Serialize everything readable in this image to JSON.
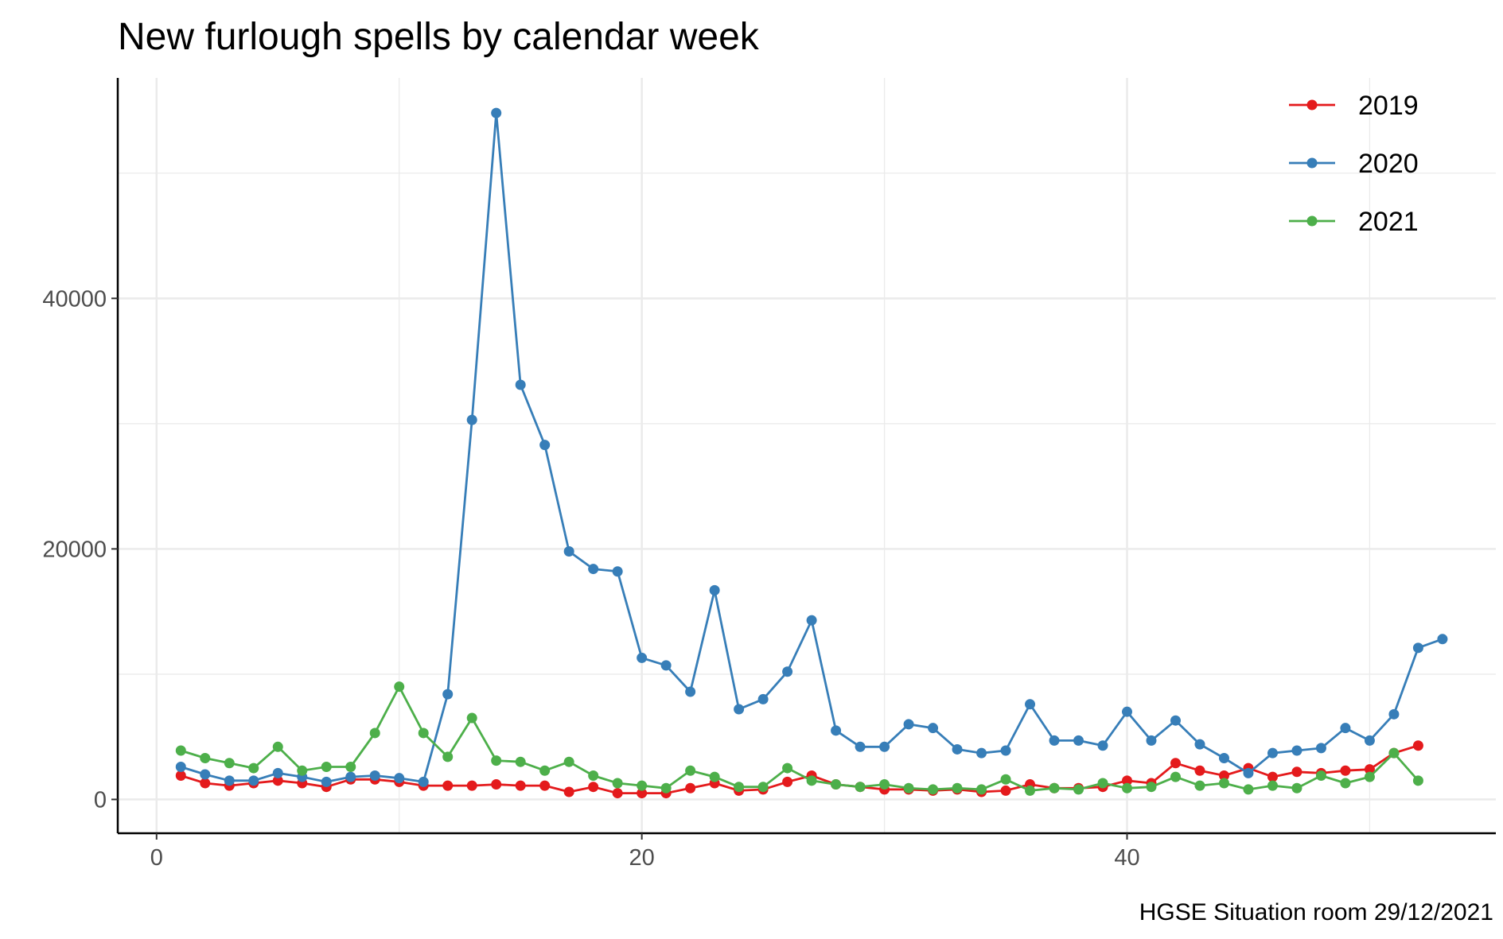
{
  "chart_data": {
    "type": "line",
    "title": "New furlough spells by calendar week",
    "caption": "HGSE Situation room 29/12/2021",
    "xlabel": "",
    "ylabel": "",
    "xlim": [
      -1.6,
      55.2
    ],
    "ylim": [
      -2700,
      57600
    ],
    "x_ticks": [
      0,
      20,
      40
    ],
    "x_tick_labels": [
      "0",
      "20",
      "40"
    ],
    "y_ticks": [
      0,
      20000,
      40000
    ],
    "y_tick_labels": [
      "0",
      "20000",
      "40000"
    ],
    "grid": true,
    "legend_position": "top-right",
    "series": [
      {
        "name": "2019",
        "color": "#e41a1c",
        "x": [
          1,
          2,
          3,
          4,
          5,
          6,
          7,
          8,
          9,
          10,
          11,
          12,
          13,
          14,
          15,
          16,
          17,
          18,
          19,
          20,
          21,
          22,
          23,
          24,
          25,
          26,
          27,
          28,
          29,
          30,
          31,
          32,
          33,
          34,
          35,
          36,
          37,
          38,
          39,
          40,
          41,
          42,
          43,
          44,
          45,
          46,
          47,
          48,
          49,
          50,
          51,
          52
        ],
        "y": [
          1900,
          1300,
          1100,
          1300,
          1500,
          1300,
          1000,
          1600,
          1600,
          1400,
          1100,
          1100,
          1100,
          1200,
          1100,
          1100,
          600,
          1000,
          500,
          500,
          500,
          900,
          1300,
          700,
          800,
          1400,
          1900,
          1200,
          1000,
          800,
          800,
          700,
          800,
          600,
          700,
          1200,
          900,
          900,
          1000,
          1500,
          1300,
          2900,
          2300,
          1900,
          2500,
          1800,
          2200,
          2100,
          2300,
          2400,
          3700,
          4300
        ]
      },
      {
        "name": "2020",
        "color": "#377eb8",
        "x": [
          1,
          2,
          3,
          4,
          5,
          6,
          7,
          8,
          9,
          10,
          11,
          12,
          13,
          14,
          15,
          16,
          17,
          18,
          19,
          20,
          21,
          22,
          23,
          24,
          25,
          26,
          27,
          28,
          29,
          30,
          31,
          32,
          33,
          34,
          35,
          36,
          37,
          38,
          39,
          40,
          41,
          42,
          43,
          44,
          45,
          46,
          47,
          48,
          49,
          50,
          51,
          52,
          53
        ],
        "y": [
          2600,
          2000,
          1500,
          1500,
          2100,
          1800,
          1400,
          1800,
          1900,
          1700,
          1400,
          8400,
          30300,
          54800,
          33100,
          28300,
          19800,
          18400,
          18200,
          11300,
          10700,
          8600,
          16700,
          7200,
          8000,
          10200,
          14300,
          5500,
          4200,
          4200,
          6000,
          5700,
          4000,
          3700,
          3900,
          7600,
          4700,
          4700,
          4300,
          7000,
          4700,
          6300,
          4400,
          3300,
          2100,
          3700,
          3900,
          4100,
          5700,
          4700,
          6800,
          12100,
          12800
        ]
      },
      {
        "name": "2021",
        "color": "#4daf4a",
        "x": [
          1,
          2,
          3,
          4,
          5,
          6,
          7,
          8,
          9,
          10,
          11,
          12,
          13,
          14,
          15,
          16,
          17,
          18,
          19,
          20,
          21,
          22,
          23,
          24,
          25,
          26,
          27,
          28,
          29,
          30,
          31,
          32,
          33,
          34,
          35,
          36,
          37,
          38,
          39,
          40,
          41,
          42,
          43,
          44,
          45,
          46,
          47,
          48,
          49,
          50,
          51,
          52
        ],
        "y": [
          3900,
          3300,
          2900,
          2500,
          4200,
          2300,
          2600,
          2600,
          5300,
          9000,
          5300,
          3400,
          6500,
          3100,
          3000,
          2300,
          3000,
          1900,
          1300,
          1100,
          900,
          2300,
          1800,
          1000,
          1000,
          2500,
          1500,
          1200,
          1000,
          1200,
          900,
          800,
          900,
          800,
          1600,
          700,
          900,
          800,
          1300,
          900,
          1000,
          1800,
          1100,
          1300,
          800,
          1100,
          900,
          1900,
          1300,
          1800,
          3700,
          1500
        ]
      }
    ]
  }
}
